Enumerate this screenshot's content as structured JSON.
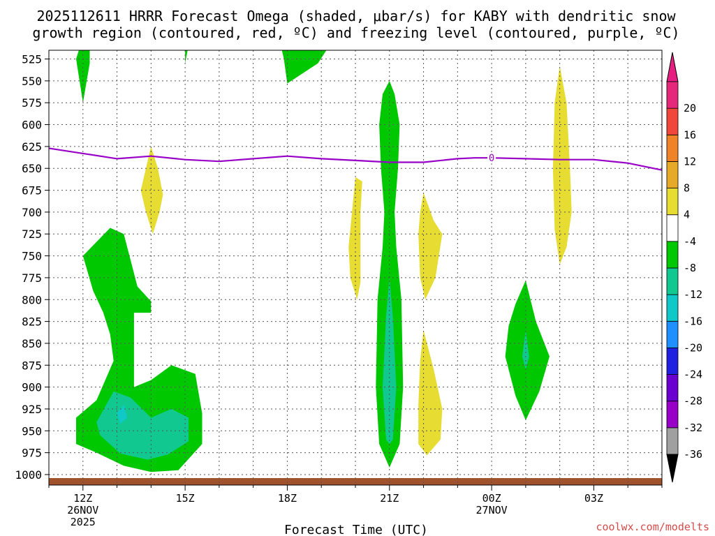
{
  "chart_data": {
    "type": "heatmap",
    "title_line1": "2025112611 HRRR Forecast Omega (shaded, μbar/s) for KABY with dendritic snow",
    "title_line2": "growth region (contoured, red, ºC) and freezing level (contoured, purple, ºC)",
    "xlabel": "Forecast Time (UTC)",
    "credit": "coolwx.com/modelts",
    "x_range_hours": [
      11,
      29
    ],
    "y_range_mb": [
      515,
      1012
    ],
    "x_ticks": [
      {
        "hour": 12,
        "label": "12Z",
        "sub1": "26NOV",
        "sub2": "2025"
      },
      {
        "hour": 15,
        "label": "15Z",
        "sub1": "",
        "sub2": ""
      },
      {
        "hour": 18,
        "label": "18Z",
        "sub1": "",
        "sub2": ""
      },
      {
        "hour": 21,
        "label": "21Z",
        "sub1": "",
        "sub2": ""
      },
      {
        "hour": 24,
        "label": "00Z",
        "sub1": "27NOV",
        "sub2": ""
      },
      {
        "hour": 27,
        "label": "03Z",
        "sub1": "",
        "sub2": ""
      }
    ],
    "y_ticks": [
      525,
      550,
      575,
      600,
      625,
      650,
      675,
      700,
      725,
      750,
      775,
      800,
      825,
      850,
      875,
      900,
      925,
      950,
      975,
      1000
    ],
    "colorbar": {
      "levels": [
        "-36",
        "-32",
        "-28",
        "-24",
        "-20",
        "-16",
        "-12",
        "-8",
        "-4",
        "4",
        "8",
        "12",
        "16",
        "20"
      ],
      "colors": [
        "#a0a0a0",
        "#9800c8",
        "#6a00d0",
        "#2020e0",
        "#1e90ff",
        "#10c8c8",
        "#10c890",
        "#00c800",
        "#ffffff",
        "#e6dc32",
        "#e6aa28",
        "#f08228",
        "#f0463c",
        "#e6287a"
      ],
      "top_color": "#e61e82",
      "bottom_color": "#000000"
    },
    "freezing_level": {
      "hours": [
        11,
        12,
        13,
        14,
        15,
        16,
        17,
        18,
        19,
        20,
        21,
        22,
        23,
        23.5,
        24,
        25,
        26,
        27,
        28,
        29
      ],
      "mb": [
        627,
        633,
        639,
        636,
        640,
        642,
        639,
        636,
        639,
        641,
        643,
        643,
        639,
        638,
        638,
        639,
        640,
        640,
        644,
        652
      ],
      "label": "0",
      "label_hour": 24,
      "color": "#9800c8"
    },
    "omega_regions": [
      {
        "name": "omega-upward-top-left",
        "value": "-4 to -8",
        "color": "#00c800",
        "points": [
          [
            11.8,
            525
          ],
          [
            12.0,
            500
          ],
          [
            12.2,
            500
          ],
          [
            12.2,
            530
          ],
          [
            12.0,
            575
          ]
        ]
      },
      {
        "name": "omega-upward-top-15z",
        "value": "-4 to -8",
        "color": "#00c800",
        "points": [
          [
            15.0,
            500
          ],
          [
            15.1,
            500
          ],
          [
            15.1,
            510
          ],
          [
            15.0,
            530
          ]
        ]
      },
      {
        "name": "omega-upward-top-18z",
        "value": "-4 to -8",
        "color": "#00c800",
        "points": [
          [
            17.75,
            500
          ],
          [
            19.4,
            500
          ],
          [
            18.9,
            530
          ],
          [
            18.0,
            553
          ],
          [
            17.9,
            525
          ]
        ]
      },
      {
        "name": "omega-upward-lowlevel",
        "value": "-4 to -8",
        "color": "#00c800",
        "points": [
          [
            12.0,
            750
          ],
          [
            12.8,
            718
          ],
          [
            13.2,
            725
          ],
          [
            13.6,
            785
          ],
          [
            14.0,
            802
          ],
          [
            14.0,
            815
          ],
          [
            13.5,
            815
          ],
          [
            13.5,
            900
          ],
          [
            14.0,
            892
          ],
          [
            14.6,
            875
          ],
          [
            15.3,
            885
          ],
          [
            15.5,
            930
          ],
          [
            15.5,
            965
          ],
          [
            14.8,
            995
          ],
          [
            14.0,
            997
          ],
          [
            13.2,
            990
          ],
          [
            12.4,
            975
          ],
          [
            11.8,
            965
          ],
          [
            11.8,
            935
          ],
          [
            12.4,
            915
          ],
          [
            12.9,
            870
          ],
          [
            12.8,
            840
          ],
          [
            12.6,
            815
          ],
          [
            12.3,
            790
          ]
        ]
      },
      {
        "name": "omega-upward-lowlevel-core",
        "value": "-8 to -12",
        "color": "#10c890",
        "points": [
          [
            12.4,
            940
          ],
          [
            12.9,
            905
          ],
          [
            13.4,
            912
          ],
          [
            14.0,
            935
          ],
          [
            14.6,
            925
          ],
          [
            15.1,
            935
          ],
          [
            15.1,
            962
          ],
          [
            14.5,
            977
          ],
          [
            13.9,
            983
          ],
          [
            13.1,
            976
          ],
          [
            12.5,
            955
          ]
        ]
      },
      {
        "name": "omega-upward-lowlevel-peak",
        "value": "-12 to -16",
        "color": "#10c8c8",
        "points": [
          [
            13.0,
            930
          ],
          [
            13.2,
            920
          ],
          [
            13.3,
            935
          ],
          [
            13.1,
            942
          ]
        ]
      },
      {
        "name": "omega-upward-21z-column",
        "value": "-4 to -8",
        "color": "#00c800",
        "points": [
          [
            21.0,
            550
          ],
          [
            21.15,
            565
          ],
          [
            21.3,
            600
          ],
          [
            21.25,
            650
          ],
          [
            21.15,
            700
          ],
          [
            21.2,
            740
          ],
          [
            21.35,
            800
          ],
          [
            21.4,
            900
          ],
          [
            21.3,
            965
          ],
          [
            21.0,
            992
          ],
          [
            20.7,
            965
          ],
          [
            20.6,
            900
          ],
          [
            20.65,
            800
          ],
          [
            20.8,
            740
          ],
          [
            20.85,
            700
          ],
          [
            20.75,
            650
          ],
          [
            20.7,
            600
          ],
          [
            20.8,
            565
          ]
        ]
      },
      {
        "name": "omega-upward-21z-core",
        "value": "-8 to -12",
        "color": "#10c890",
        "points": [
          [
            21.0,
            775
          ],
          [
            21.1,
            820
          ],
          [
            21.2,
            900
          ],
          [
            21.1,
            960
          ],
          [
            21.0,
            965
          ],
          [
            20.9,
            960
          ],
          [
            20.8,
            900
          ],
          [
            20.9,
            820
          ]
        ]
      },
      {
        "name": "omega-upward-01z",
        "value": "-4 to -8",
        "color": "#00c800",
        "points": [
          [
            25.0,
            778
          ],
          [
            25.3,
            825
          ],
          [
            25.7,
            865
          ],
          [
            25.4,
            905
          ],
          [
            25.0,
            938
          ],
          [
            24.7,
            910
          ],
          [
            24.4,
            865
          ],
          [
            24.5,
            830
          ],
          [
            24.7,
            805
          ]
        ]
      },
      {
        "name": "omega-upward-01z-core",
        "value": "-8 to -12",
        "color": "#10c890",
        "points": [
          [
            25.0,
            835
          ],
          [
            25.1,
            865
          ],
          [
            25.0,
            880
          ],
          [
            24.9,
            865
          ]
        ]
      },
      {
        "name": "omega-downward-14z",
        "value": "4 to 8",
        "color": "#e6dc32",
        "points": [
          [
            14.0,
            625
          ],
          [
            14.2,
            650
          ],
          [
            14.35,
            680
          ],
          [
            14.25,
            700
          ],
          [
            14.05,
            725
          ],
          [
            13.85,
            700
          ],
          [
            13.7,
            675
          ],
          [
            13.85,
            650
          ]
        ]
      },
      {
        "name": "omega-downward-20z",
        "value": "4 to 8",
        "color": "#e6dc32",
        "points": [
          [
            20.0,
            660
          ],
          [
            20.2,
            665
          ],
          [
            20.15,
            700
          ],
          [
            20.15,
            780
          ],
          [
            20.05,
            800
          ],
          [
            19.85,
            775
          ],
          [
            19.8,
            740
          ],
          [
            19.9,
            700
          ]
        ]
      },
      {
        "name": "omega-downward-22z-upper",
        "value": "4 to 8",
        "color": "#e6dc32",
        "points": [
          [
            22.0,
            678
          ],
          [
            22.3,
            710
          ],
          [
            22.55,
            725
          ],
          [
            22.35,
            775
          ],
          [
            22.05,
            800
          ],
          [
            21.9,
            775
          ],
          [
            21.85,
            725
          ],
          [
            21.9,
            700
          ]
        ]
      },
      {
        "name": "omega-downward-22z-lower",
        "value": "4 to 8",
        "color": "#e6dc32",
        "points": [
          [
            22.0,
            835
          ],
          [
            22.3,
            880
          ],
          [
            22.55,
            925
          ],
          [
            22.5,
            960
          ],
          [
            22.1,
            978
          ],
          [
            21.85,
            965
          ],
          [
            21.85,
            920
          ],
          [
            21.9,
            870
          ]
        ]
      },
      {
        "name": "omega-downward-02z",
        "value": "4 to 8",
        "color": "#e6dc32",
        "points": [
          [
            26.0,
            533
          ],
          [
            26.2,
            575
          ],
          [
            26.3,
            650
          ],
          [
            26.35,
            700
          ],
          [
            26.2,
            740
          ],
          [
            26.0,
            760
          ],
          [
            25.85,
            720
          ],
          [
            25.8,
            650
          ],
          [
            25.85,
            575
          ]
        ]
      }
    ]
  }
}
